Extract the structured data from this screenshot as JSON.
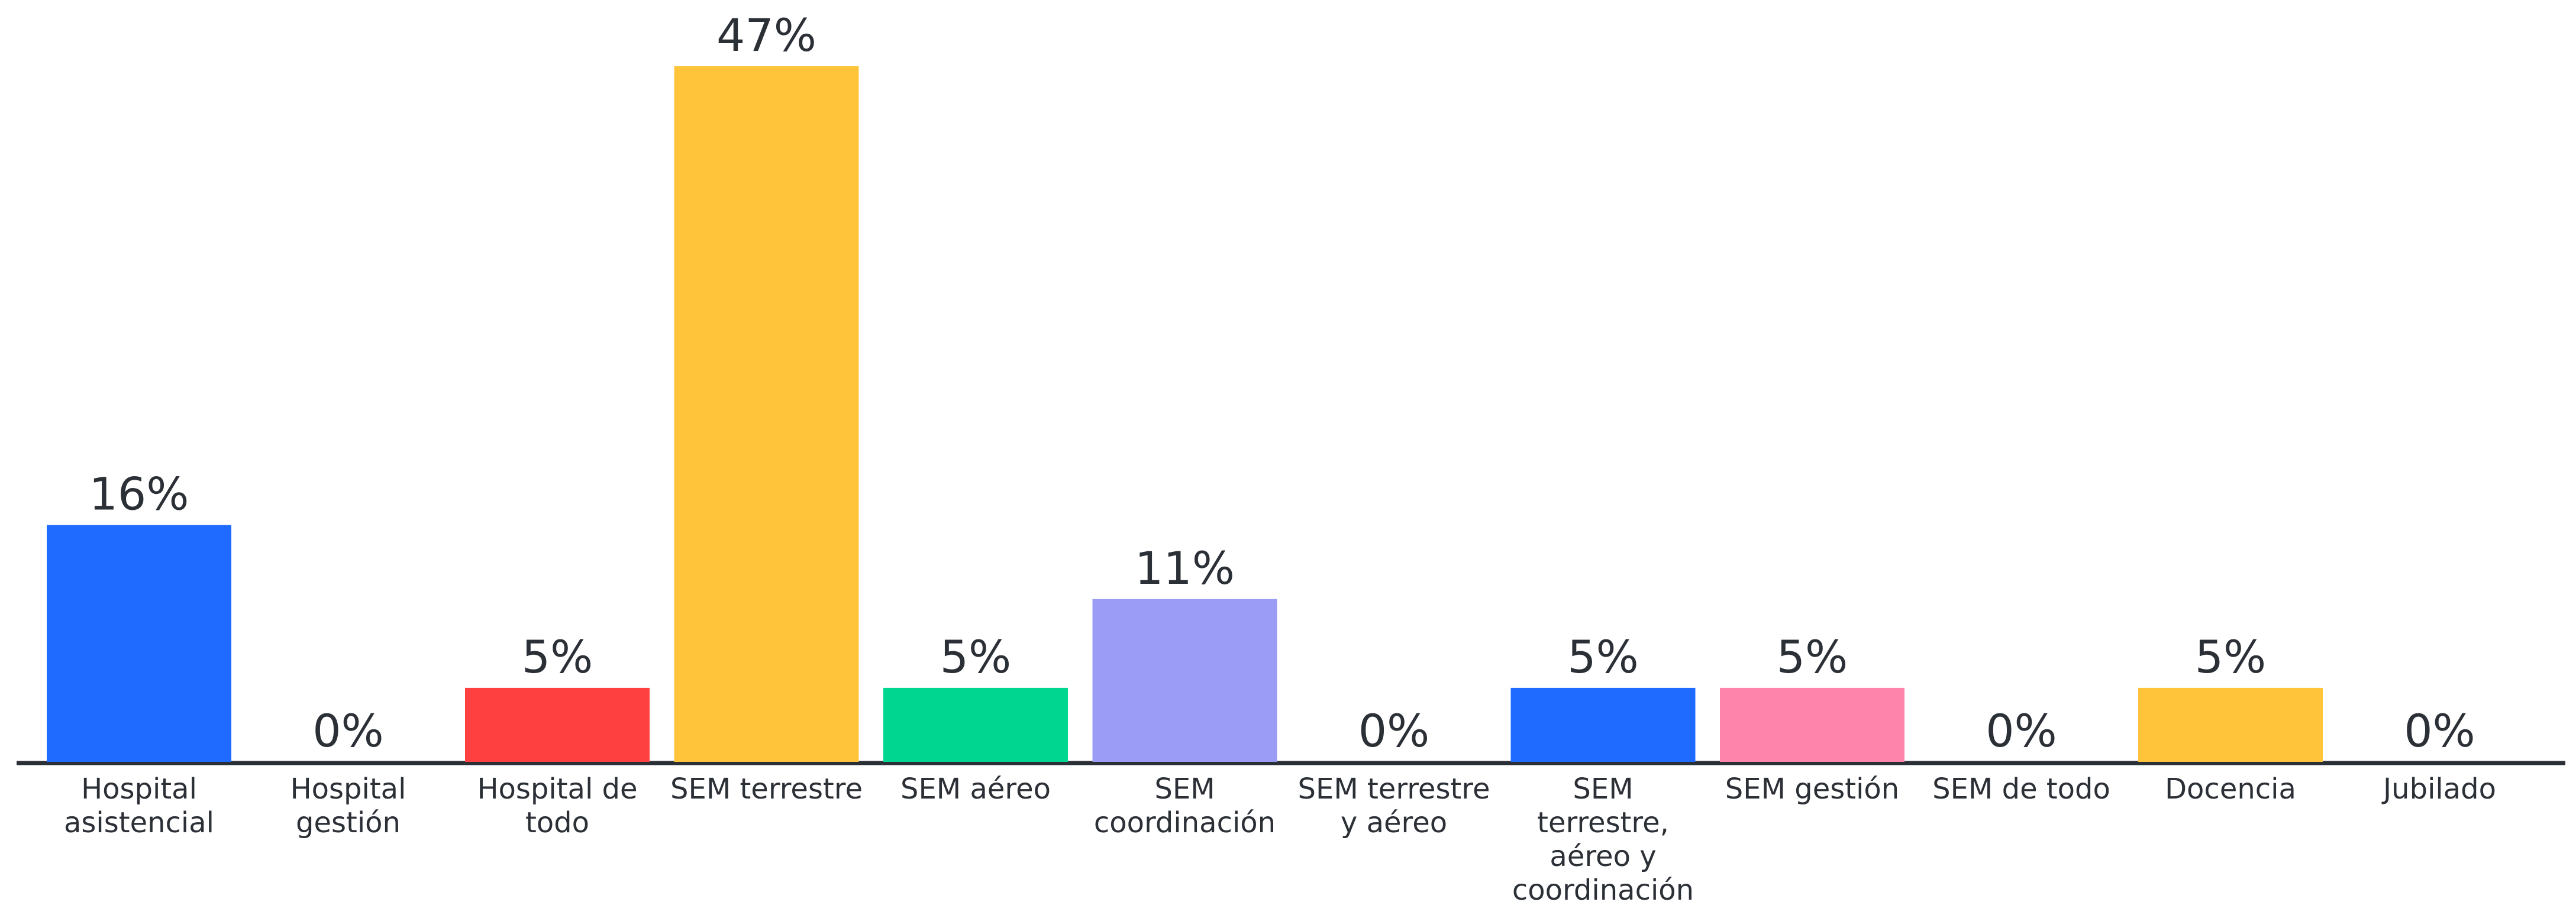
{
  "chart_data": {
    "type": "bar",
    "categories": [
      "Hospital asistencial",
      "Hospital gestión",
      "Hospital de todo",
      "SEM terrestre",
      "SEM aéreo",
      "SEM coordinación",
      "SEM terrestre y aéreo",
      "SEM terrestre, aéreo y coordinación",
      "SEM gestión",
      "SEM de todo",
      "Docencia",
      "Jubilado"
    ],
    "category_lines": [
      [
        "Hospital",
        "asistencial"
      ],
      [
        "Hospital",
        "gestión"
      ],
      [
        "Hospital de",
        "todo"
      ],
      [
        "SEM terrestre"
      ],
      [
        "SEM aéreo"
      ],
      [
        "SEM",
        "coordinación"
      ],
      [
        "SEM terrestre",
        "y aéreo"
      ],
      [
        "SEM",
        "terrestre,",
        "aéreo y",
        "coordinación"
      ],
      [
        "SEM gestión"
      ],
      [
        "SEM de todo"
      ],
      [
        "Docencia"
      ],
      [
        "Jubilado"
      ]
    ],
    "values": [
      16,
      0,
      5,
      47,
      5,
      11,
      0,
      5,
      5,
      0,
      5,
      0
    ],
    "value_labels": [
      "16%",
      "0%",
      "5%",
      "47%",
      "5%",
      "11%",
      "0%",
      "5%",
      "5%",
      "0%",
      "5%",
      "0%"
    ],
    "colors": [
      "#1f6bff",
      "#1f6bff",
      "#ff4040",
      "#ffc43a",
      "#00d68f",
      "#9a9cf5",
      "#9a9cf5",
      "#1f6bff",
      "#ff84ac",
      "#ff84ac",
      "#ffc43a",
      "#ffc43a"
    ],
    "title": "",
    "xlabel": "",
    "ylabel": "",
    "ylim": [
      0,
      47
    ],
    "grid": false,
    "legend": "none"
  }
}
